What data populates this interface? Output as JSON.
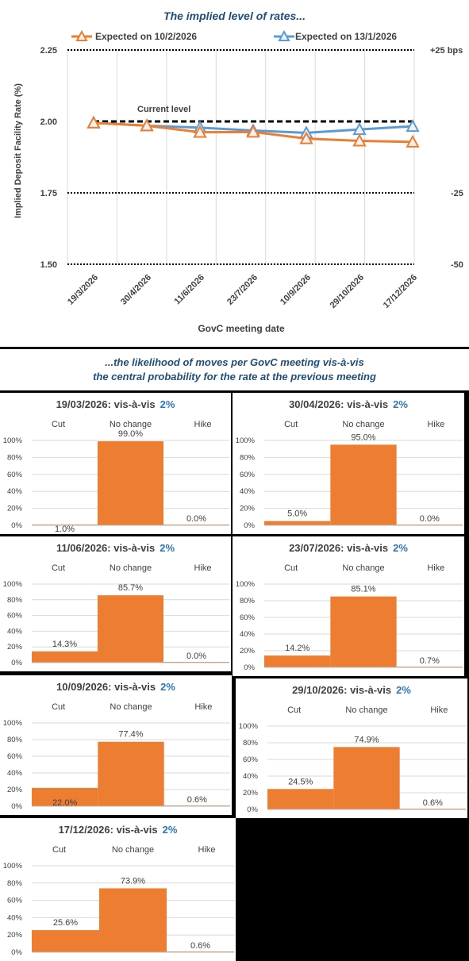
{
  "rates_chart": {
    "title": "The implied level of rates...",
    "ylabel": "Implied Deposit Facility Rate (%)",
    "xlabel": "GovC meeting date",
    "current_level_label": "Current level",
    "bps_labels": [
      "+25 bps",
      "-25",
      "-50"
    ],
    "colors": {
      "orange": "#ed7d31",
      "blue": "#5b9bd5"
    }
  },
  "chart_data": [
    {
      "type": "line",
      "title": "The implied level of rates...",
      "xlabel": "GovC meeting date",
      "ylabel": "Implied Deposit Facility Rate (%)",
      "ylim": [
        1.5,
        2.25
      ],
      "yticks": [
        "1.50",
        "1.75",
        "2.00",
        "2.25"
      ],
      "x": [
        "19/3/2026",
        "30/4/2026",
        "11/6/2026",
        "23/7/2026",
        "10/9/2026",
        "29/10/2026",
        "17/12/2026"
      ],
      "series": [
        {
          "name": "Expected on 10/2/2026",
          "color": "#ed7d31",
          "values": [
            1.995,
            1.985,
            1.962,
            1.963,
            1.94,
            1.932,
            1.928
          ]
        },
        {
          "name": "Expected on 13/1/2026",
          "color": "#5b9bd5",
          "values": [
            1.995,
            1.985,
            1.978,
            1.968,
            1.96,
            1.972,
            1.983
          ]
        }
      ],
      "reference_lines": [
        2.25,
        2.0,
        1.75,
        1.5
      ],
      "grid": true,
      "legend": "top"
    },
    {
      "type": "bar",
      "title": "19/03/2026: vis-à-vis",
      "highlight": "2%",
      "categories": [
        "Cut",
        "No change",
        "Hike"
      ],
      "values": [
        1.0,
        99.0,
        0.0
      ],
      "labels": [
        "1.0%",
        "99.0%",
        "0.0%"
      ],
      "ylim": [
        0,
        100
      ],
      "yticks": [
        "0%",
        "20%",
        "40%",
        "60%",
        "80%",
        "100%"
      ]
    },
    {
      "type": "bar",
      "title": "30/04/2026: vis-à-vis",
      "highlight": "2%",
      "categories": [
        "Cut",
        "No change",
        "Hike"
      ],
      "values": [
        5.0,
        95.0,
        0.0
      ],
      "labels": [
        "5.0%",
        "95.0%",
        "0.0%"
      ],
      "ylim": [
        0,
        100
      ],
      "yticks": [
        "0%",
        "20%",
        "40%",
        "60%",
        "80%",
        "100%"
      ]
    },
    {
      "type": "bar",
      "title": "11/06/2026: vis-à-vis",
      "highlight": "2%",
      "categories": [
        "Cut",
        "No change",
        "Hike"
      ],
      "values": [
        14.3,
        85.7,
        0.0
      ],
      "labels": [
        "14.3%",
        "85.7%",
        "0.0%"
      ],
      "ylim": [
        0,
        100
      ],
      "yticks": [
        "0%",
        "20%",
        "40%",
        "60%",
        "80%",
        "100%"
      ]
    },
    {
      "type": "bar",
      "title": "23/07/2026: vis-à-vis",
      "highlight": "2%",
      "categories": [
        "Cut",
        "No change",
        "Hike"
      ],
      "values": [
        14.2,
        85.1,
        0.7
      ],
      "labels": [
        "14.2%",
        "85.1%",
        "0.7%"
      ],
      "ylim": [
        0,
        100
      ],
      "yticks": [
        "0%",
        "20%",
        "40%",
        "60%",
        "80%",
        "100%"
      ]
    },
    {
      "type": "bar",
      "title": "10/09/2026: vis-à-vis",
      "highlight": "2%",
      "categories": [
        "Cut",
        "No change",
        "Hike"
      ],
      "values": [
        22.0,
        77.4,
        0.6
      ],
      "labels": [
        "22.0%",
        "77.4%",
        "0.6%"
      ],
      "ylim": [
        0,
        100
      ],
      "yticks": [
        "0%",
        "20%",
        "40%",
        "60%",
        "80%",
        "100%"
      ]
    },
    {
      "type": "bar",
      "title": "29/10/2026: vis-à-vis",
      "highlight": "2%",
      "categories": [
        "Cut",
        "No change",
        "Hike"
      ],
      "values": [
        24.5,
        74.9,
        0.6
      ],
      "labels": [
        "24.5%",
        "74.9%",
        "0.6%"
      ],
      "ylim": [
        0,
        100
      ],
      "yticks": [
        "0%",
        "20%",
        "40%",
        "60%",
        "80%",
        "100%"
      ]
    },
    {
      "type": "bar",
      "title": "17/12/2026: vis-à-vis",
      "highlight": "2%",
      "categories": [
        "Cut",
        "No change",
        "Hike"
      ],
      "values": [
        25.6,
        73.9,
        0.6
      ],
      "labels": [
        "25.6%",
        "73.9%",
        "0.6%"
      ],
      "ylim": [
        0,
        100
      ],
      "yticks": [
        "0%",
        "20%",
        "40%",
        "60%",
        "80%",
        "100%"
      ]
    }
  ],
  "likelihood_section": {
    "title_line1": "...the likelihood of moves per GovC meeting vis-à-vis",
    "title_line2": "the central probability for the rate at the previous meeting"
  }
}
